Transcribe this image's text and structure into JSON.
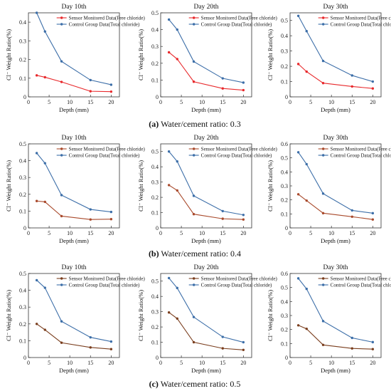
{
  "figure": {
    "row_captions": [
      {
        "letter": "(a)",
        "text": "Water/cement ratio: 0.3"
      },
      {
        "letter": "(b)",
        "text": "Water/cement ratio: 0.4"
      },
      {
        "letter": "(c)",
        "text": "Water/cement ratio: 0.5"
      }
    ]
  },
  "chart_data": [
    {
      "type": "line",
      "title": "Day 10th",
      "xlabel": "Depth (mm)",
      "ylabel": "Cl⁻ Weight Ratio(%)",
      "x": [
        2,
        4,
        8,
        15,
        20
      ],
      "xlim": [
        0,
        22
      ],
      "xticks": [
        0,
        5,
        10,
        15,
        20
      ],
      "ylim": [
        0,
        0.45
      ],
      "yticks": [
        0,
        0.1,
        0.2,
        0.3,
        0.4
      ],
      "series": [
        {
          "name": "Sensor Monitored Data(Free chloride)",
          "color": "#e8292c",
          "values": [
            0.115,
            0.105,
            0.08,
            0.03,
            0.028
          ]
        },
        {
          "name": "Control Group Data(Total chloride)",
          "color": "#3c6ea8",
          "values": [
            0.45,
            0.35,
            0.19,
            0.09,
            0.065
          ]
        }
      ],
      "legend": "top-right",
      "grid": false
    },
    {
      "type": "line",
      "title": "Day 20th",
      "xlabel": "Depth (mm)",
      "ylabel": "Cl⁻ Weight Ratio(%)",
      "x": [
        2,
        4,
        8,
        15,
        20
      ],
      "xlim": [
        0,
        22
      ],
      "xticks": [
        0,
        5,
        10,
        15,
        20
      ],
      "ylim": [
        0,
        0.5
      ],
      "yticks": [
        0,
        0.1,
        0.2,
        0.3,
        0.4,
        0.5
      ],
      "series": [
        {
          "name": "Sensor Monitored Data(Free chloride)",
          "color": "#e8292c",
          "values": [
            0.265,
            0.225,
            0.09,
            0.05,
            0.04
          ]
        },
        {
          "name": "Control Group Data(Total chloride)",
          "color": "#3c6ea8",
          "values": [
            0.46,
            0.4,
            0.21,
            0.11,
            0.085
          ]
        }
      ],
      "legend": "top-right",
      "grid": false
    },
    {
      "type": "line",
      "title": "Day 30th",
      "xlabel": "Depth (mm)",
      "ylabel": "Cl⁻ Weight Ratio(%)",
      "x": [
        2,
        4,
        8,
        15,
        20
      ],
      "xlim": [
        0,
        22
      ],
      "xticks": [
        0,
        5,
        10,
        15,
        20
      ],
      "ylim": [
        0,
        0.55
      ],
      "yticks": [
        0,
        0.1,
        0.2,
        0.3,
        0.4,
        0.5
      ],
      "series": [
        {
          "name": "Sensor Monitored Data(Free chloride)",
          "color": "#e8292c",
          "values": [
            0.215,
            0.165,
            0.09,
            0.068,
            0.055
          ]
        },
        {
          "name": "Control Group Data(Total chloride)",
          "color": "#3c6ea8",
          "values": [
            0.53,
            0.43,
            0.235,
            0.14,
            0.1
          ]
        }
      ],
      "legend": "top-right",
      "grid": false
    },
    {
      "type": "line",
      "title": "Day 10th",
      "xlabel": "Depth (mm)",
      "ylabel": "Cl⁻ Weight Ratio(%)",
      "x": [
        2,
        4,
        8,
        15,
        20
      ],
      "xlim": [
        0,
        22
      ],
      "xticks": [
        0,
        5,
        10,
        15,
        20
      ],
      "ylim": [
        0,
        0.5
      ],
      "yticks": [
        0,
        0.1,
        0.2,
        0.3,
        0.4,
        0.5
      ],
      "series": [
        {
          "name": "Sensor Monitored Data(Free chloride)",
          "color": "#a94a2c",
          "values": [
            0.16,
            0.155,
            0.07,
            0.05,
            0.052
          ]
        },
        {
          "name": "Control Group Data(Total chloride)",
          "color": "#3c6ea8",
          "values": [
            0.445,
            0.385,
            0.195,
            0.11,
            0.095
          ]
        }
      ],
      "legend": "top-right",
      "grid": false
    },
    {
      "type": "line",
      "title": "Day 20th",
      "xlabel": "Depth (mm)",
      "ylabel": "Cl⁻ Weight Ratio(%)",
      "x": [
        2,
        4,
        8,
        15,
        20
      ],
      "xlim": [
        0,
        22
      ],
      "xticks": [
        0,
        5,
        10,
        15,
        20
      ],
      "ylim": [
        0,
        0.55
      ],
      "yticks": [
        0,
        0.1,
        0.2,
        0.3,
        0.4,
        0.5
      ],
      "series": [
        {
          "name": "Sensor Monitored Data(Free chloride)",
          "color": "#a94a2c",
          "values": [
            0.28,
            0.245,
            0.09,
            0.06,
            0.055
          ]
        },
        {
          "name": "Control Group Data(Total chloride)",
          "color": "#3c6ea8",
          "values": [
            0.5,
            0.435,
            0.21,
            0.11,
            0.085
          ]
        }
      ],
      "legend": "top-right",
      "grid": false
    },
    {
      "type": "line",
      "title": "Day 30th",
      "xlabel": "Depth (mm)",
      "ylabel": "Cl⁻ Weight Ratio(%)",
      "x": [
        2,
        4,
        8,
        15,
        20
      ],
      "xlim": [
        0,
        22
      ],
      "xticks": [
        0,
        5,
        10,
        15,
        20
      ],
      "ylim": [
        0,
        0.6
      ],
      "yticks": [
        0,
        0.1,
        0.2,
        0.3,
        0.4,
        0.5,
        0.6
      ],
      "series": [
        {
          "name": "Sensor Monitored Data(Free chloride)",
          "color": "#a94a2c",
          "values": [
            0.24,
            0.195,
            0.105,
            0.08,
            0.06
          ]
        },
        {
          "name": "Control Group Data(Total chloride)",
          "color": "#3c6ea8",
          "values": [
            0.54,
            0.455,
            0.245,
            0.125,
            0.105
          ]
        }
      ],
      "legend": "top-right",
      "grid": false
    },
    {
      "type": "line",
      "title": "Day 10th",
      "xlabel": "Depth (mm)",
      "ylabel": "Cl⁻ Weight Ratio(%)",
      "x": [
        2,
        4,
        8,
        15,
        20
      ],
      "xlim": [
        0,
        22
      ],
      "xticks": [
        0,
        5,
        10,
        15,
        20
      ],
      "ylim": [
        0,
        0.5
      ],
      "yticks": [
        0,
        0.1,
        0.2,
        0.3,
        0.4,
        0.5
      ],
      "series": [
        {
          "name": "Sensor Monitored Data(Free chloride)",
          "color": "#7a3e1e",
          "values": [
            0.2,
            0.165,
            0.088,
            0.06,
            0.05
          ]
        },
        {
          "name": "Control Group Data(Total chloride)",
          "color": "#3c6ea8",
          "values": [
            0.46,
            0.415,
            0.215,
            0.12,
            0.095
          ]
        }
      ],
      "legend": "top-right",
      "grid": false
    },
    {
      "type": "line",
      "title": "Day 20th",
      "xlabel": "Depth (mm)",
      "ylabel": "Cl⁻ Weight Ratio(%)",
      "x": [
        2,
        4,
        8,
        15,
        20
      ],
      "xlim": [
        0,
        22
      ],
      "xticks": [
        0,
        5,
        10,
        15,
        20
      ],
      "ylim": [
        0,
        0.55
      ],
      "yticks": [
        0,
        0.1,
        0.2,
        0.3,
        0.4,
        0.5
      ],
      "series": [
        {
          "name": "Sensor Monitored Data(Free chloride)",
          "color": "#7a3e1e",
          "values": [
            0.295,
            0.255,
            0.1,
            0.06,
            0.05
          ]
        },
        {
          "name": "Control Group Data(Total chloride)",
          "color": "#3c6ea8",
          "values": [
            0.52,
            0.455,
            0.265,
            0.135,
            0.1
          ]
        }
      ],
      "legend": "top-right",
      "grid": false
    },
    {
      "type": "line",
      "title": "Day 30th",
      "xlabel": "Depth (mm)",
      "ylabel": "Cl⁻ Weight Ratio(%)",
      "x": [
        2,
        4,
        8,
        15,
        20
      ],
      "xlim": [
        0,
        22
      ],
      "xticks": [
        0,
        5,
        10,
        15,
        20
      ],
      "ylim": [
        0,
        0.6
      ],
      "yticks": [
        0,
        0.1,
        0.2,
        0.3,
        0.4,
        0.5,
        0.6
      ],
      "series": [
        {
          "name": "Sensor Monitored Data(Free chloride)",
          "color": "#7a3e1e",
          "values": [
            0.23,
            0.205,
            0.09,
            0.065,
            0.06
          ]
        },
        {
          "name": "Control Group Data(Total chloride)",
          "color": "#3c6ea8",
          "values": [
            0.565,
            0.49,
            0.26,
            0.14,
            0.11
          ]
        }
      ],
      "legend": "top-right",
      "grid": false
    }
  ]
}
